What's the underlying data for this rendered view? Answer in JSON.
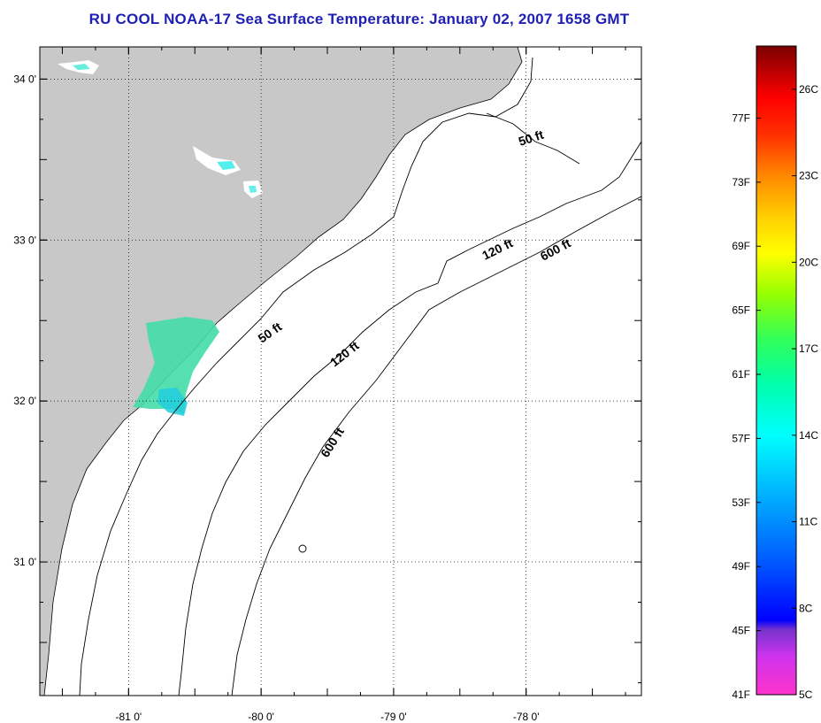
{
  "title": "RU COOL  NOAA-17  Sea Surface Temperature:  January 02, 2007 1658 GMT",
  "map": {
    "lon_range": [
      -81.67,
      -77.13
    ],
    "lat_range": [
      30.17,
      34.2
    ],
    "grid": "dotted",
    "land_color": "#c8c8c8",
    "ocean_color": "#ffffff",
    "x_ticks": [
      {
        "lon": -81,
        "label": "-81 0'"
      },
      {
        "lon": -80,
        "label": "-80 0'"
      },
      {
        "lon": -79,
        "label": "-79 0'"
      },
      {
        "lon": -78,
        "label": "-78 0'"
      }
    ],
    "y_ticks": [
      {
        "lat": 34,
        "label": "34 0'"
      },
      {
        "lat": 33,
        "label": "33 0'"
      },
      {
        "lat": 32,
        "label": "32 0'"
      },
      {
        "lat": 31,
        "label": "31 0'"
      }
    ],
    "contour_labels": [
      {
        "text": "50 ft",
        "name": "contour-label-50ft-north"
      },
      {
        "text": "50 ft",
        "name": "contour-label-50ft-south"
      },
      {
        "text": "120 ft",
        "name": "contour-label-120ft-north"
      },
      {
        "text": "120 ft",
        "name": "contour-label-120ft-south"
      },
      {
        "text": "600 ft",
        "name": "contour-label-600ft-north"
      },
      {
        "text": "600 ft",
        "name": "contour-label-600ft-south"
      }
    ]
  },
  "colorbar": {
    "fahrenheit": [
      "77F",
      "73F",
      "69F",
      "65F",
      "61F",
      "57F",
      "53F",
      "49F",
      "45F",
      "41F"
    ],
    "celsius": [
      "26C",
      "23C",
      "20C",
      "17C",
      "14C",
      "11C",
      "8C",
      "5C"
    ],
    "colors": [
      "#ff33cc",
      "#cc33ee",
      "#7733cc",
      "#0000ff",
      "#0066ff",
      "#00aaff",
      "#00ffff",
      "#00ff99",
      "#33ff33",
      "#99ff00",
      "#ffff00",
      "#ffcc00",
      "#ff8800",
      "#ff3300",
      "#ff0000",
      "#cc0000",
      "#880000"
    ]
  }
}
